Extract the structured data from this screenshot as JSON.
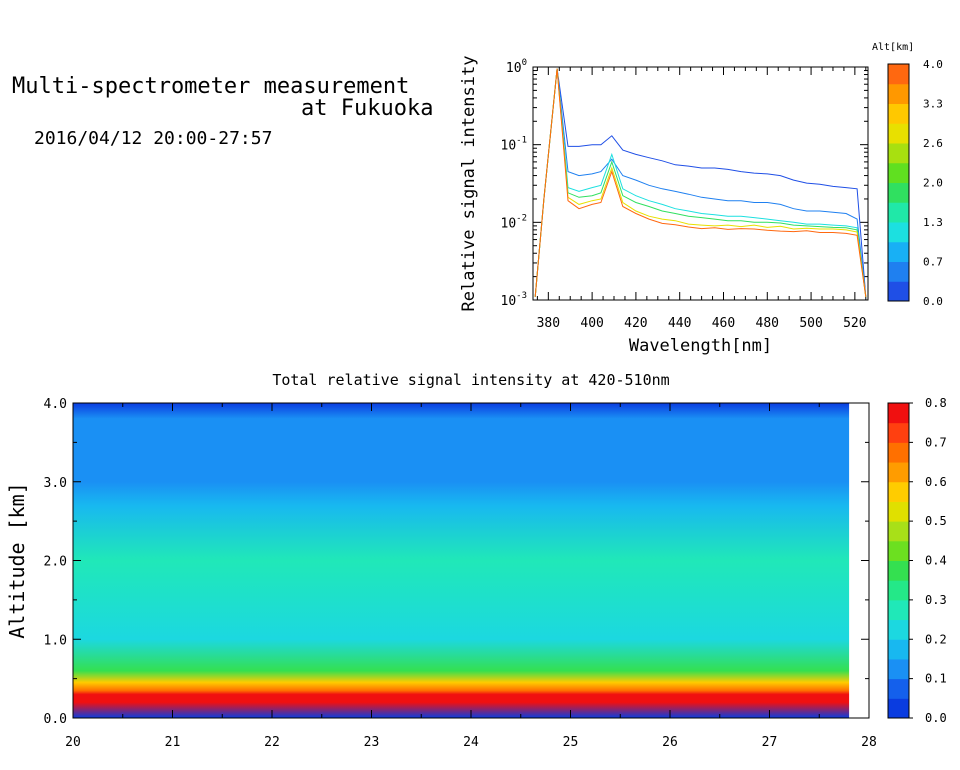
{
  "header": {
    "title_line1": "Multi-spectrometer measurement",
    "title_line2": "at Fukuoka",
    "date_range": "2016/04/12 20:00-27:57"
  },
  "chart_data": [
    {
      "type": "line",
      "xlabel": "Wavelength[nm]",
      "ylabel": "Relative signal intensity",
      "xlim": [
        373,
        526
      ],
      "ylim": [
        0.001,
        1
      ],
      "yscale": "log",
      "x_ticks": [
        380,
        400,
        420,
        440,
        460,
        480,
        500,
        520
      ],
      "y_ticks": [
        {
          "value": 1,
          "label": "10^0"
        },
        {
          "value": 0.1,
          "label": "10^-1"
        },
        {
          "value": 0.01,
          "label": "10^-2"
        },
        {
          "value": 0.001,
          "label": "10^-3"
        }
      ],
      "colorbar": {
        "label": "Alt[km]",
        "ticks": [
          "0.0",
          "0.7",
          "1.3",
          "2.0",
          "2.6",
          "3.3",
          "4.0"
        ],
        "colors": [
          "#1f4fe6",
          "#1f80f0",
          "#18b0f5",
          "#1ce0e0",
          "#20e8a8",
          "#30e060",
          "#60e020",
          "#a8e010",
          "#e8e000",
          "#ffc800",
          "#ff9800",
          "#ff6810"
        ]
      },
      "x": [
        374,
        378,
        384,
        389,
        394,
        400,
        404,
        409,
        414,
        420,
        426,
        432,
        438,
        444,
        450,
        456,
        462,
        468,
        474,
        480,
        486,
        492,
        498,
        504,
        510,
        516,
        521,
        525
      ],
      "series": [
        {
          "color": "#1f4fe6",
          "values": [
            0.0011,
            0.02,
            0.95,
            0.095,
            0.095,
            0.1,
            0.1,
            0.13,
            0.085,
            0.075,
            0.068,
            0.062,
            0.055,
            0.053,
            0.05,
            0.05,
            0.048,
            0.045,
            0.043,
            0.042,
            0.04,
            0.035,
            0.032,
            0.031,
            0.029,
            0.028,
            0.027,
            0.0011
          ]
        },
        {
          "color": "#1f80f0",
          "values": [
            0.0011,
            0.02,
            0.95,
            0.045,
            0.04,
            0.042,
            0.045,
            0.065,
            0.04,
            0.035,
            0.03,
            0.027,
            0.025,
            0.023,
            0.021,
            0.02,
            0.019,
            0.019,
            0.018,
            0.018,
            0.017,
            0.015,
            0.014,
            0.014,
            0.0135,
            0.013,
            0.011,
            0.0011
          ]
        },
        {
          "color": "#1ce0e0",
          "values": [
            0.0011,
            0.02,
            0.95,
            0.028,
            0.025,
            0.028,
            0.03,
            0.075,
            0.027,
            0.022,
            0.019,
            0.017,
            0.015,
            0.014,
            0.013,
            0.0125,
            0.012,
            0.012,
            0.0115,
            0.011,
            0.0105,
            0.01,
            0.0095,
            0.0095,
            0.0092,
            0.009,
            0.0085,
            0.0011
          ]
        },
        {
          "color": "#30e060",
          "values": [
            0.0011,
            0.02,
            0.95,
            0.024,
            0.021,
            0.022,
            0.024,
            0.06,
            0.022,
            0.018,
            0.016,
            0.014,
            0.013,
            0.012,
            0.0115,
            0.011,
            0.0105,
            0.0105,
            0.01,
            0.01,
            0.0098,
            0.0092,
            0.009,
            0.0088,
            0.0086,
            0.0085,
            0.008,
            0.0011
          ]
        },
        {
          "color": "#e8e000",
          "values": [
            0.0011,
            0.02,
            0.95,
            0.021,
            0.017,
            0.019,
            0.02,
            0.05,
            0.018,
            0.014,
            0.012,
            0.011,
            0.0105,
            0.0095,
            0.0092,
            0.009,
            0.0092,
            0.0088,
            0.0092,
            0.0086,
            0.0089,
            0.0082,
            0.0084,
            0.0082,
            0.0082,
            0.008,
            0.0075,
            0.0011
          ]
        },
        {
          "color": "#ff6810",
          "values": [
            0.0011,
            0.02,
            0.95,
            0.019,
            0.015,
            0.017,
            0.018,
            0.045,
            0.016,
            0.013,
            0.011,
            0.0097,
            0.0093,
            0.0087,
            0.0083,
            0.0085,
            0.0081,
            0.0083,
            0.0082,
            0.0079,
            0.0077,
            0.0076,
            0.0078,
            0.0074,
            0.0074,
            0.0072,
            0.0068,
            0.0011
          ]
        }
      ]
    },
    {
      "type": "heatmap",
      "title": "Total relative signal intensity at 420-510nm",
      "ylabel": "Altitude [km]",
      "xlabel": "",
      "xlim": [
        20,
        28
      ],
      "ylim": [
        0,
        4
      ],
      "x_ticks": [
        "20",
        "21",
        "22",
        "23",
        "24",
        "25",
        "26",
        "27",
        "28"
      ],
      "y_ticks": [
        "0.0",
        "1.0",
        "2.0",
        "3.0",
        "4.0"
      ],
      "data_time_range": [
        20,
        27.8
      ],
      "profile": {
        "altitude_km": [
          0.0,
          0.2,
          0.3,
          0.35,
          0.45,
          0.6,
          1.0,
          2.0,
          2.7,
          3.0,
          3.8,
          4.0
        ],
        "value": [
          0.0,
          0.76,
          0.76,
          0.7,
          0.58,
          0.36,
          0.24,
          0.28,
          0.18,
          0.13,
          0.12,
          0.03
        ]
      },
      "colorbar": {
        "ticks": [
          "0.0",
          "0.1",
          "0.2",
          "0.3",
          "0.4",
          "0.5",
          "0.6",
          "0.7",
          "0.8"
        ],
        "range": [
          0,
          0.8
        ],
        "colors": [
          "#0a3ce0",
          "#1460ec",
          "#1a90f4",
          "#18b8f0",
          "#1cd8e0",
          "#20e8b8",
          "#24e888",
          "#34e050",
          "#6ce020",
          "#a8e018",
          "#e0e000",
          "#ffcc00",
          "#ff9c00",
          "#ff7000",
          "#ff4010",
          "#f01010"
        ]
      }
    }
  ]
}
